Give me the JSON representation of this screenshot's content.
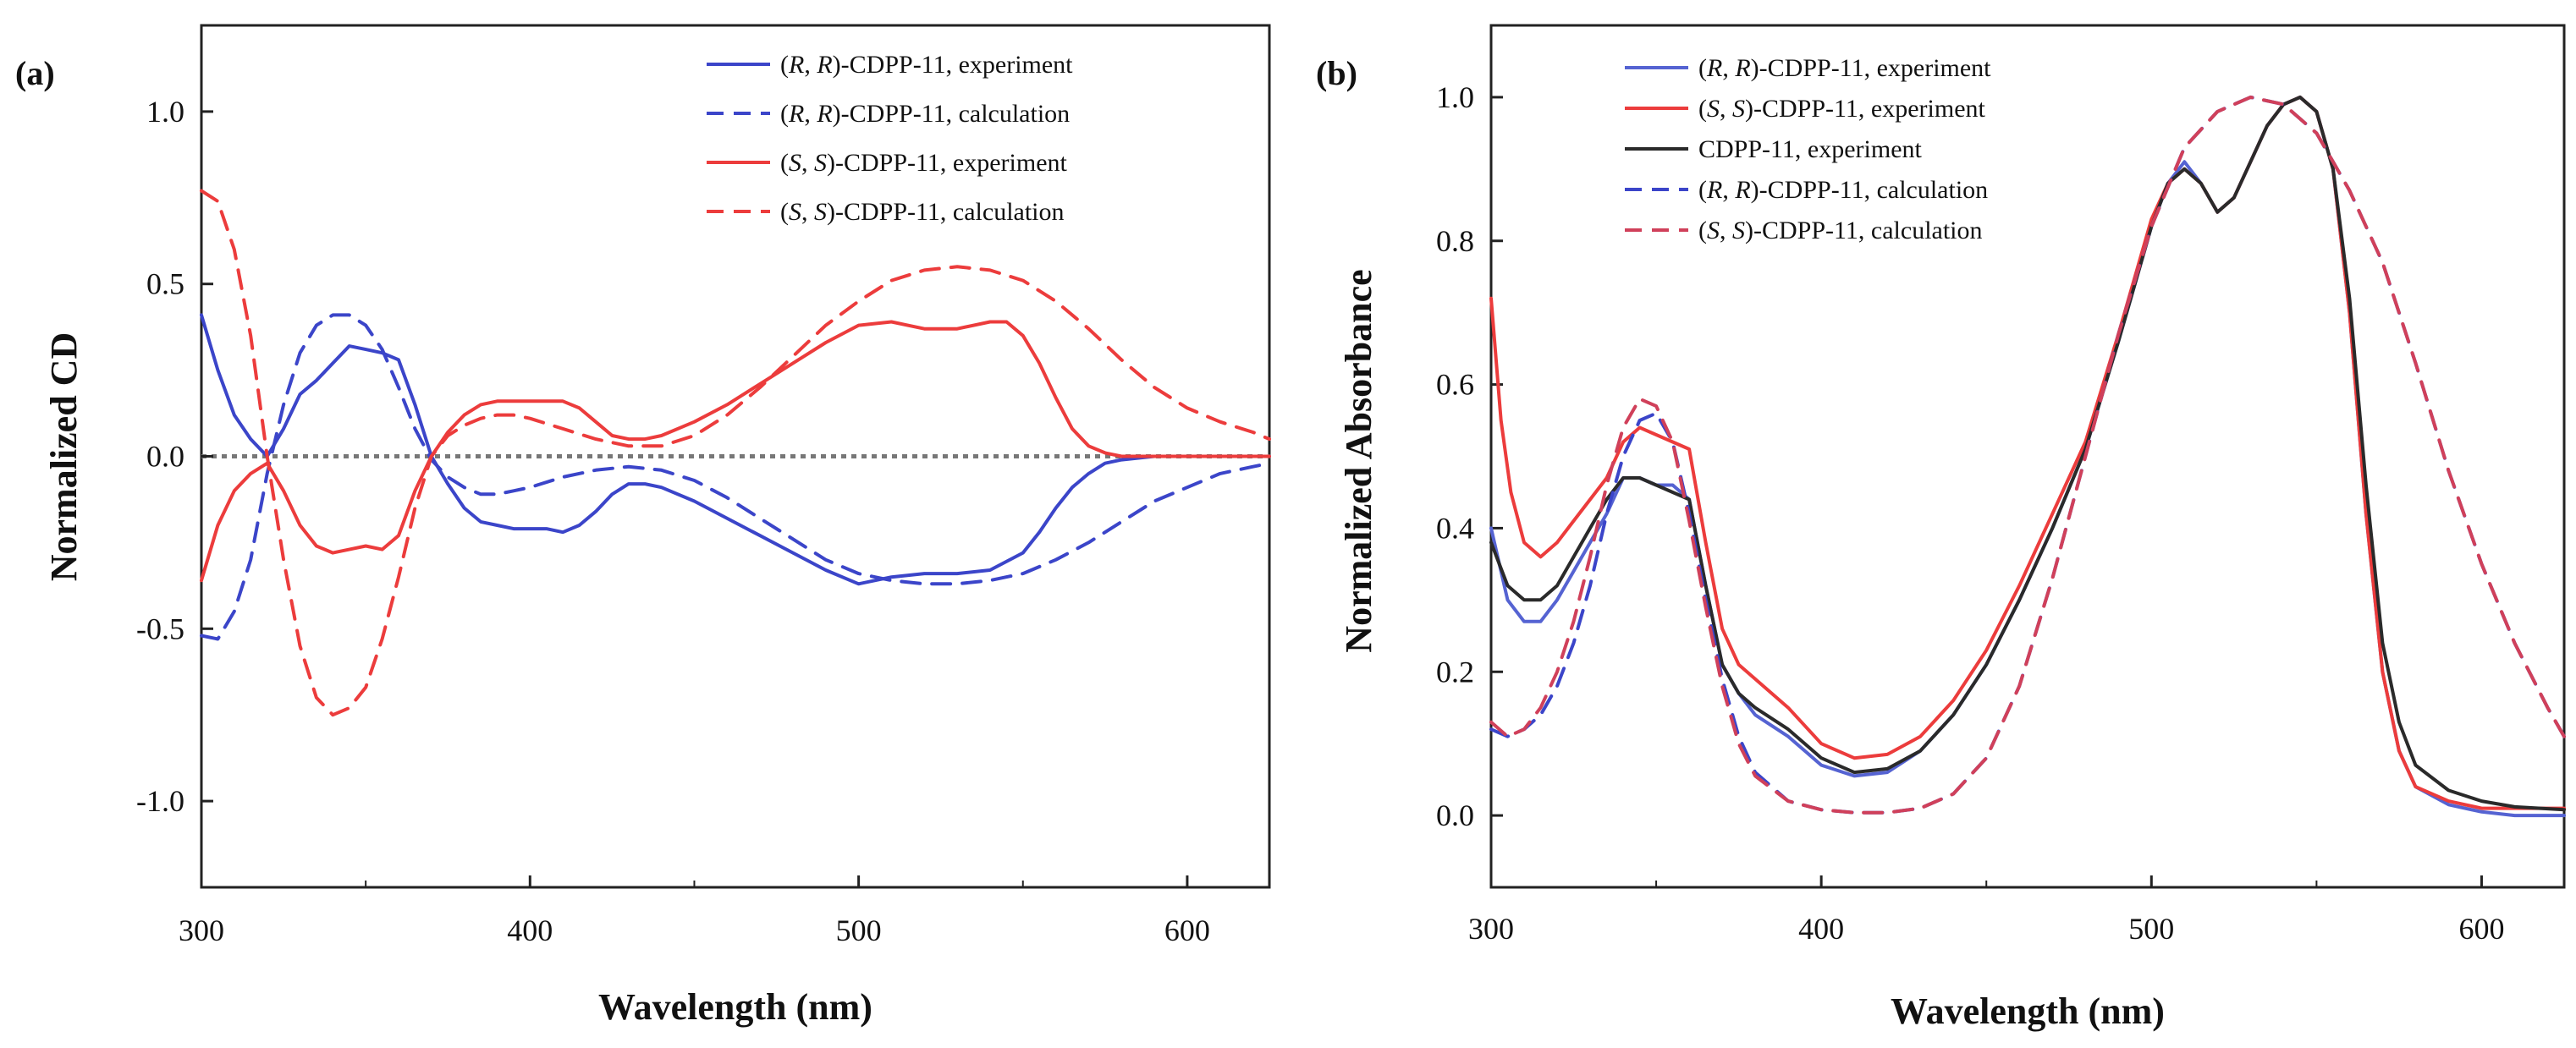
{
  "panels": [
    {
      "panel_label": "(a)",
      "legend": [
        {
          "italic_pair": [
            "R",
            "R"
          ],
          "text": "-CDPP-11, experiment",
          "color": "#3b45c9",
          "dash": "solid"
        },
        {
          "italic_pair": [
            "R",
            "R"
          ],
          "text": "-CDPP-11, calculation",
          "color": "#3b45c9",
          "dash": "dashed"
        },
        {
          "italic_pair": [
            "S",
            "S"
          ],
          "text": "-CDPP-11, experiment",
          "color": "#ec3c3c",
          "dash": "solid"
        },
        {
          "italic_pair": [
            "S",
            "S"
          ],
          "text": "-CDPP-11, calculation",
          "color": "#ec3c3c",
          "dash": "dashed"
        }
      ]
    },
    {
      "panel_label": "(b)",
      "legend": [
        {
          "italic_pair": [
            "R",
            "R"
          ],
          "text": "-CDPP-11, experiment",
          "color": "#5563d2",
          "dash": "solid"
        },
        {
          "italic_pair": [
            "S",
            "S"
          ],
          "text": "-CDPP-11, experiment",
          "color": "#ec3c3c",
          "dash": "solid"
        },
        {
          "italic_pair": null,
          "text": "CDPP-11, experiment",
          "color": "#2a2a2a",
          "dash": "solid"
        },
        {
          "italic_pair": [
            "R",
            "R"
          ],
          "text": "-CDPP-11, calculation",
          "color": "#3b45c9",
          "dash": "dashed"
        },
        {
          "italic_pair": [
            "S",
            "S"
          ],
          "text": "-CDPP-11, calculation",
          "color": "#d0405a",
          "dash": "dashed"
        }
      ]
    }
  ],
  "chart_data": [
    {
      "type": "line",
      "title": "",
      "xlabel": "Wavelength (nm)",
      "ylabel": "Normalized CD",
      "xlim": [
        300,
        625
      ],
      "ylim": [
        -1.25,
        1.25
      ],
      "xticks": [
        300,
        400,
        500,
        600
      ],
      "xtick_labels": [
        "300",
        "400",
        "500",
        "600"
      ],
      "yticks": [
        -1.0,
        -0.5,
        0.0,
        0.5,
        1.0
      ],
      "ytick_labels": [
        "-1.0",
        "-0.5",
        "0.0",
        "0.5",
        "1.0"
      ],
      "zero_line": true,
      "legend_position": "top-right",
      "series": [
        {
          "name": "(R, R)-CDPP-11, experiment",
          "color": "#3b45c9",
          "dash": "solid",
          "x": [
            300,
            305,
            310,
            315,
            320,
            325,
            330,
            335,
            340,
            345,
            350,
            355,
            360,
            365,
            370,
            375,
            380,
            385,
            390,
            395,
            400,
            405,
            410,
            415,
            420,
            425,
            430,
            435,
            440,
            450,
            460,
            470,
            480,
            490,
            500,
            510,
            520,
            530,
            540,
            550,
            555,
            560,
            565,
            570,
            575,
            580,
            590,
            600,
            610,
            620,
            625
          ],
          "y": [
            0.41,
            0.25,
            0.12,
            0.05,
            0.0,
            0.08,
            0.18,
            0.22,
            0.27,
            0.32,
            0.31,
            0.3,
            0.28,
            0.15,
            0.0,
            -0.08,
            -0.15,
            -0.19,
            -0.2,
            -0.21,
            -0.21,
            -0.21,
            -0.22,
            -0.2,
            -0.16,
            -0.11,
            -0.08,
            -0.08,
            -0.09,
            -0.13,
            -0.18,
            -0.23,
            -0.28,
            -0.33,
            -0.37,
            -0.35,
            -0.34,
            -0.34,
            -0.33,
            -0.28,
            -0.22,
            -0.15,
            -0.09,
            -0.05,
            -0.02,
            -0.01,
            0.0,
            0.0,
            0.0,
            0.0,
            0.0
          ]
        },
        {
          "name": "(R, R)-CDPP-11, calculation",
          "color": "#3b45c9",
          "dash": "dashed",
          "x": [
            300,
            305,
            310,
            315,
            320,
            325,
            330,
            335,
            340,
            345,
            350,
            355,
            360,
            365,
            370,
            375,
            380,
            385,
            390,
            395,
            400,
            410,
            420,
            430,
            440,
            450,
            460,
            470,
            480,
            490,
            500,
            510,
            520,
            530,
            540,
            550,
            560,
            570,
            580,
            590,
            600,
            610,
            620,
            625
          ],
          "y": [
            -0.52,
            -0.53,
            -0.45,
            -0.3,
            -0.05,
            0.15,
            0.3,
            0.38,
            0.41,
            0.41,
            0.38,
            0.31,
            0.2,
            0.08,
            -0.01,
            -0.06,
            -0.09,
            -0.11,
            -0.11,
            -0.1,
            -0.09,
            -0.06,
            -0.04,
            -0.03,
            -0.04,
            -0.07,
            -0.12,
            -0.18,
            -0.24,
            -0.3,
            -0.34,
            -0.36,
            -0.37,
            -0.37,
            -0.36,
            -0.34,
            -0.3,
            -0.25,
            -0.19,
            -0.13,
            -0.09,
            -0.05,
            -0.03,
            -0.02
          ]
        },
        {
          "name": "(S, S)-CDPP-11, experiment",
          "color": "#ec3c3c",
          "dash": "solid",
          "x": [
            300,
            305,
            310,
            315,
            320,
            325,
            330,
            335,
            340,
            345,
            350,
            355,
            360,
            365,
            370,
            375,
            380,
            385,
            390,
            395,
            400,
            405,
            410,
            415,
            420,
            425,
            430,
            435,
            440,
            450,
            460,
            470,
            480,
            490,
            500,
            510,
            520,
            530,
            540,
            545,
            550,
            555,
            560,
            565,
            570,
            575,
            580,
            590,
            600,
            610,
            620,
            625
          ],
          "y": [
            -0.36,
            -0.2,
            -0.1,
            -0.05,
            -0.02,
            -0.1,
            -0.2,
            -0.26,
            -0.28,
            -0.27,
            -0.26,
            -0.27,
            -0.23,
            -0.1,
            0.0,
            0.07,
            0.12,
            0.15,
            0.16,
            0.16,
            0.16,
            0.16,
            0.16,
            0.14,
            0.1,
            0.06,
            0.05,
            0.05,
            0.06,
            0.1,
            0.15,
            0.21,
            0.27,
            0.33,
            0.38,
            0.39,
            0.37,
            0.37,
            0.39,
            0.39,
            0.35,
            0.27,
            0.17,
            0.08,
            0.03,
            0.01,
            0.0,
            0.0,
            0.0,
            0.0,
            0.0,
            0.0
          ]
        },
        {
          "name": "(S, S)-CDPP-11, calculation",
          "color": "#ec3c3c",
          "dash": "dashed",
          "x": [
            300,
            305,
            310,
            315,
            320,
            325,
            330,
            335,
            340,
            345,
            350,
            355,
            360,
            365,
            370,
            375,
            380,
            385,
            390,
            395,
            400,
            410,
            420,
            430,
            440,
            450,
            460,
            470,
            480,
            490,
            500,
            510,
            520,
            530,
            540,
            550,
            560,
            570,
            580,
            590,
            600,
            610,
            620,
            625
          ],
          "y": [
            0.77,
            0.74,
            0.6,
            0.35,
            0.0,
            -0.3,
            -0.55,
            -0.7,
            -0.75,
            -0.73,
            -0.67,
            -0.53,
            -0.35,
            -0.15,
            0.0,
            0.06,
            0.09,
            0.11,
            0.12,
            0.12,
            0.11,
            0.08,
            0.05,
            0.03,
            0.03,
            0.06,
            0.12,
            0.2,
            0.29,
            0.38,
            0.45,
            0.51,
            0.54,
            0.55,
            0.54,
            0.51,
            0.45,
            0.37,
            0.28,
            0.2,
            0.14,
            0.1,
            0.07,
            0.05
          ]
        }
      ]
    },
    {
      "type": "line",
      "title": "",
      "xlabel": "Wavelength (nm)",
      "ylabel": "Normalized Absorbance",
      "xlim": [
        300,
        625
      ],
      "ylim": [
        -0.1,
        1.1
      ],
      "xticks": [
        300,
        400,
        500,
        600
      ],
      "xtick_labels": [
        "300",
        "400",
        "500",
        "600"
      ],
      "yticks": [
        0.0,
        0.2,
        0.4,
        0.6,
        0.8,
        1.0
      ],
      "ytick_labels": [
        "0.0",
        "0.2",
        "0.4",
        "0.6",
        "0.8",
        "1.0"
      ],
      "zero_line": false,
      "legend_position": "top-left",
      "series": [
        {
          "name": "(R, R)-CDPP-11, experiment",
          "color": "#5563d2",
          "dash": "solid",
          "x": [
            300,
            305,
            310,
            315,
            320,
            325,
            330,
            335,
            340,
            345,
            350,
            355,
            360,
            365,
            370,
            375,
            380,
            390,
            400,
            410,
            420,
            430,
            440,
            450,
            460,
            470,
            480,
            490,
            500,
            505,
            510,
            515,
            520,
            525,
            530,
            535,
            540,
            545,
            550,
            555,
            560,
            565,
            570,
            575,
            580,
            590,
            600,
            610,
            625
          ],
          "y": [
            0.4,
            0.3,
            0.27,
            0.27,
            0.3,
            0.34,
            0.38,
            0.42,
            0.47,
            0.47,
            0.46,
            0.46,
            0.44,
            0.32,
            0.21,
            0.17,
            0.14,
            0.11,
            0.07,
            0.055,
            0.06,
            0.09,
            0.14,
            0.21,
            0.3,
            0.4,
            0.51,
            0.66,
            0.82,
            0.88,
            0.91,
            0.88,
            0.84,
            0.86,
            0.91,
            0.96,
            0.99,
            1.0,
            0.98,
            0.9,
            0.7,
            0.42,
            0.2,
            0.09,
            0.04,
            0.015,
            0.005,
            0.0,
            0.0
          ]
        },
        {
          "name": "(S, S)-CDPP-11, experiment",
          "color": "#ec3c3c",
          "dash": "solid",
          "x": [
            300,
            303,
            306,
            310,
            315,
            320,
            325,
            330,
            335,
            340,
            345,
            350,
            355,
            360,
            365,
            370,
            375,
            380,
            390,
            400,
            410,
            420,
            430,
            440,
            450,
            460,
            470,
            480,
            490,
            500,
            505,
            510,
            515,
            520,
            525,
            530,
            535,
            540,
            545,
            550,
            555,
            560,
            565,
            570,
            575,
            580,
            590,
            600,
            610,
            625
          ],
          "y": [
            0.72,
            0.55,
            0.45,
            0.38,
            0.36,
            0.38,
            0.41,
            0.44,
            0.47,
            0.52,
            0.54,
            0.53,
            0.52,
            0.51,
            0.38,
            0.26,
            0.21,
            0.19,
            0.15,
            0.1,
            0.08,
            0.085,
            0.11,
            0.16,
            0.23,
            0.32,
            0.42,
            0.52,
            0.67,
            0.83,
            0.88,
            0.9,
            0.88,
            0.84,
            0.86,
            0.91,
            0.96,
            0.99,
            1.0,
            0.98,
            0.9,
            0.7,
            0.42,
            0.2,
            0.09,
            0.04,
            0.02,
            0.01,
            0.01,
            0.01
          ]
        },
        {
          "name": "CDPP-11, experiment",
          "color": "#2a2a2a",
          "dash": "solid",
          "x": [
            300,
            305,
            310,
            315,
            320,
            325,
            330,
            335,
            340,
            345,
            350,
            355,
            360,
            365,
            370,
            375,
            380,
            390,
            400,
            410,
            420,
            430,
            440,
            450,
            460,
            470,
            480,
            490,
            500,
            505,
            510,
            515,
            520,
            525,
            530,
            535,
            540,
            545,
            550,
            555,
            560,
            565,
            570,
            575,
            580,
            590,
            600,
            610,
            625
          ],
          "y": [
            0.38,
            0.32,
            0.3,
            0.3,
            0.32,
            0.36,
            0.4,
            0.44,
            0.47,
            0.47,
            0.46,
            0.45,
            0.44,
            0.32,
            0.21,
            0.17,
            0.15,
            0.12,
            0.08,
            0.06,
            0.065,
            0.09,
            0.14,
            0.21,
            0.3,
            0.4,
            0.51,
            0.66,
            0.82,
            0.88,
            0.9,
            0.88,
            0.84,
            0.86,
            0.91,
            0.96,
            0.99,
            1.0,
            0.98,
            0.9,
            0.72,
            0.46,
            0.24,
            0.13,
            0.07,
            0.035,
            0.02,
            0.012,
            0.008
          ]
        },
        {
          "name": "(R, R)-CDPP-11, calculation",
          "color": "#3b45c9",
          "dash": "dashed",
          "x": [
            300,
            305,
            310,
            315,
            320,
            325,
            330,
            335,
            340,
            345,
            350,
            355,
            360,
            365,
            370,
            375,
            380,
            390,
            400,
            410,
            420,
            430,
            440,
            450,
            460,
            470,
            480,
            490,
            500,
            510,
            520,
            530,
            540,
            545,
            550,
            555,
            560,
            570,
            580,
            590,
            600,
            610,
            620,
            625
          ],
          "y": [
            0.12,
            0.11,
            0.12,
            0.14,
            0.18,
            0.24,
            0.32,
            0.42,
            0.5,
            0.55,
            0.56,
            0.52,
            0.42,
            0.3,
            0.19,
            0.11,
            0.06,
            0.02,
            0.008,
            0.004,
            0.004,
            0.01,
            0.03,
            0.08,
            0.18,
            0.33,
            0.5,
            0.67,
            0.82,
            0.93,
            0.98,
            1.0,
            0.99,
            0.97,
            0.95,
            0.91,
            0.87,
            0.77,
            0.63,
            0.48,
            0.35,
            0.24,
            0.15,
            0.11
          ]
        },
        {
          "name": "(S, S)-CDPP-11, calculation",
          "color": "#d0405a",
          "dash": "dashed",
          "x": [
            300,
            305,
            310,
            315,
            320,
            325,
            330,
            335,
            340,
            345,
            350,
            355,
            360,
            365,
            370,
            375,
            380,
            390,
            400,
            410,
            420,
            430,
            440,
            450,
            460,
            470,
            480,
            490,
            500,
            510,
            520,
            530,
            540,
            545,
            550,
            555,
            560,
            570,
            580,
            590,
            600,
            610,
            620,
            625
          ],
          "y": [
            0.13,
            0.11,
            0.12,
            0.15,
            0.2,
            0.27,
            0.36,
            0.46,
            0.54,
            0.58,
            0.57,
            0.52,
            0.41,
            0.29,
            0.18,
            0.1,
            0.055,
            0.02,
            0.008,
            0.004,
            0.004,
            0.01,
            0.03,
            0.08,
            0.18,
            0.33,
            0.5,
            0.67,
            0.82,
            0.93,
            0.98,
            1.0,
            0.99,
            0.97,
            0.95,
            0.91,
            0.87,
            0.77,
            0.63,
            0.48,
            0.35,
            0.24,
            0.15,
            0.11
          ]
        }
      ]
    }
  ]
}
